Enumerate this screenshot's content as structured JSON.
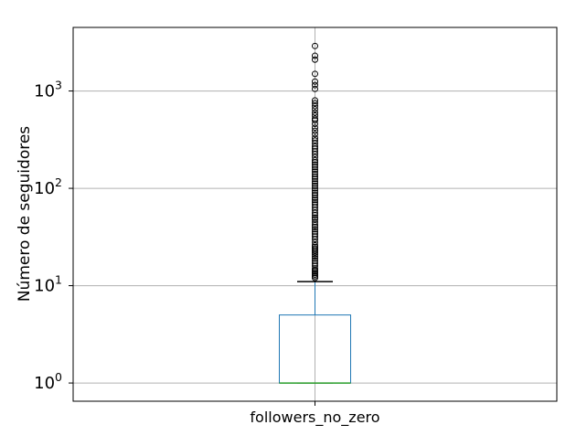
{
  "chart_data": {
    "type": "box",
    "yscale": "log",
    "ylabel": "Número de seguidores",
    "categories": [
      "followers_no_zero"
    ],
    "ylim": [
      0.65,
      4500
    ],
    "yticks": [
      {
        "value": 1,
        "base": "10",
        "exponent": "0"
      },
      {
        "value": 10,
        "base": "10",
        "exponent": "1"
      },
      {
        "value": 100,
        "base": "10",
        "exponent": "2"
      },
      {
        "value": 1000,
        "base": "10",
        "exponent": "3"
      }
    ],
    "grid": true,
    "boxes": [
      {
        "name": "followers_no_zero",
        "q1": 1,
        "median": 1,
        "q3": 5,
        "whisker_low": 1,
        "whisker_high": 11,
        "outliers": [
          12,
          12.5,
          13,
          13.5,
          14,
          14.5,
          15,
          16,
          17,
          18,
          19,
          20,
          21,
          22,
          23,
          24,
          25,
          26,
          28,
          30,
          32,
          34,
          36,
          38,
          40,
          42,
          45,
          48,
          50,
          53,
          56,
          60,
          64,
          68,
          72,
          76,
          80,
          85,
          90,
          95,
          100,
          106,
          112,
          118,
          125,
          132,
          140,
          148,
          156,
          165,
          175,
          185,
          195,
          210,
          225,
          240,
          255,
          270,
          290,
          310,
          330,
          360,
          390,
          420,
          460,
          500,
          520,
          560,
          600,
          650,
          700,
          750,
          800,
          1050,
          1150,
          1250,
          1500,
          2100,
          2300,
          2900
        ]
      }
    ],
    "colors": {
      "box": "#1f77b4",
      "median": "#2ca02c",
      "whisker": "#000000",
      "grid": "#b0b0b0",
      "axes": "#000000",
      "outlier": "#000000"
    }
  }
}
